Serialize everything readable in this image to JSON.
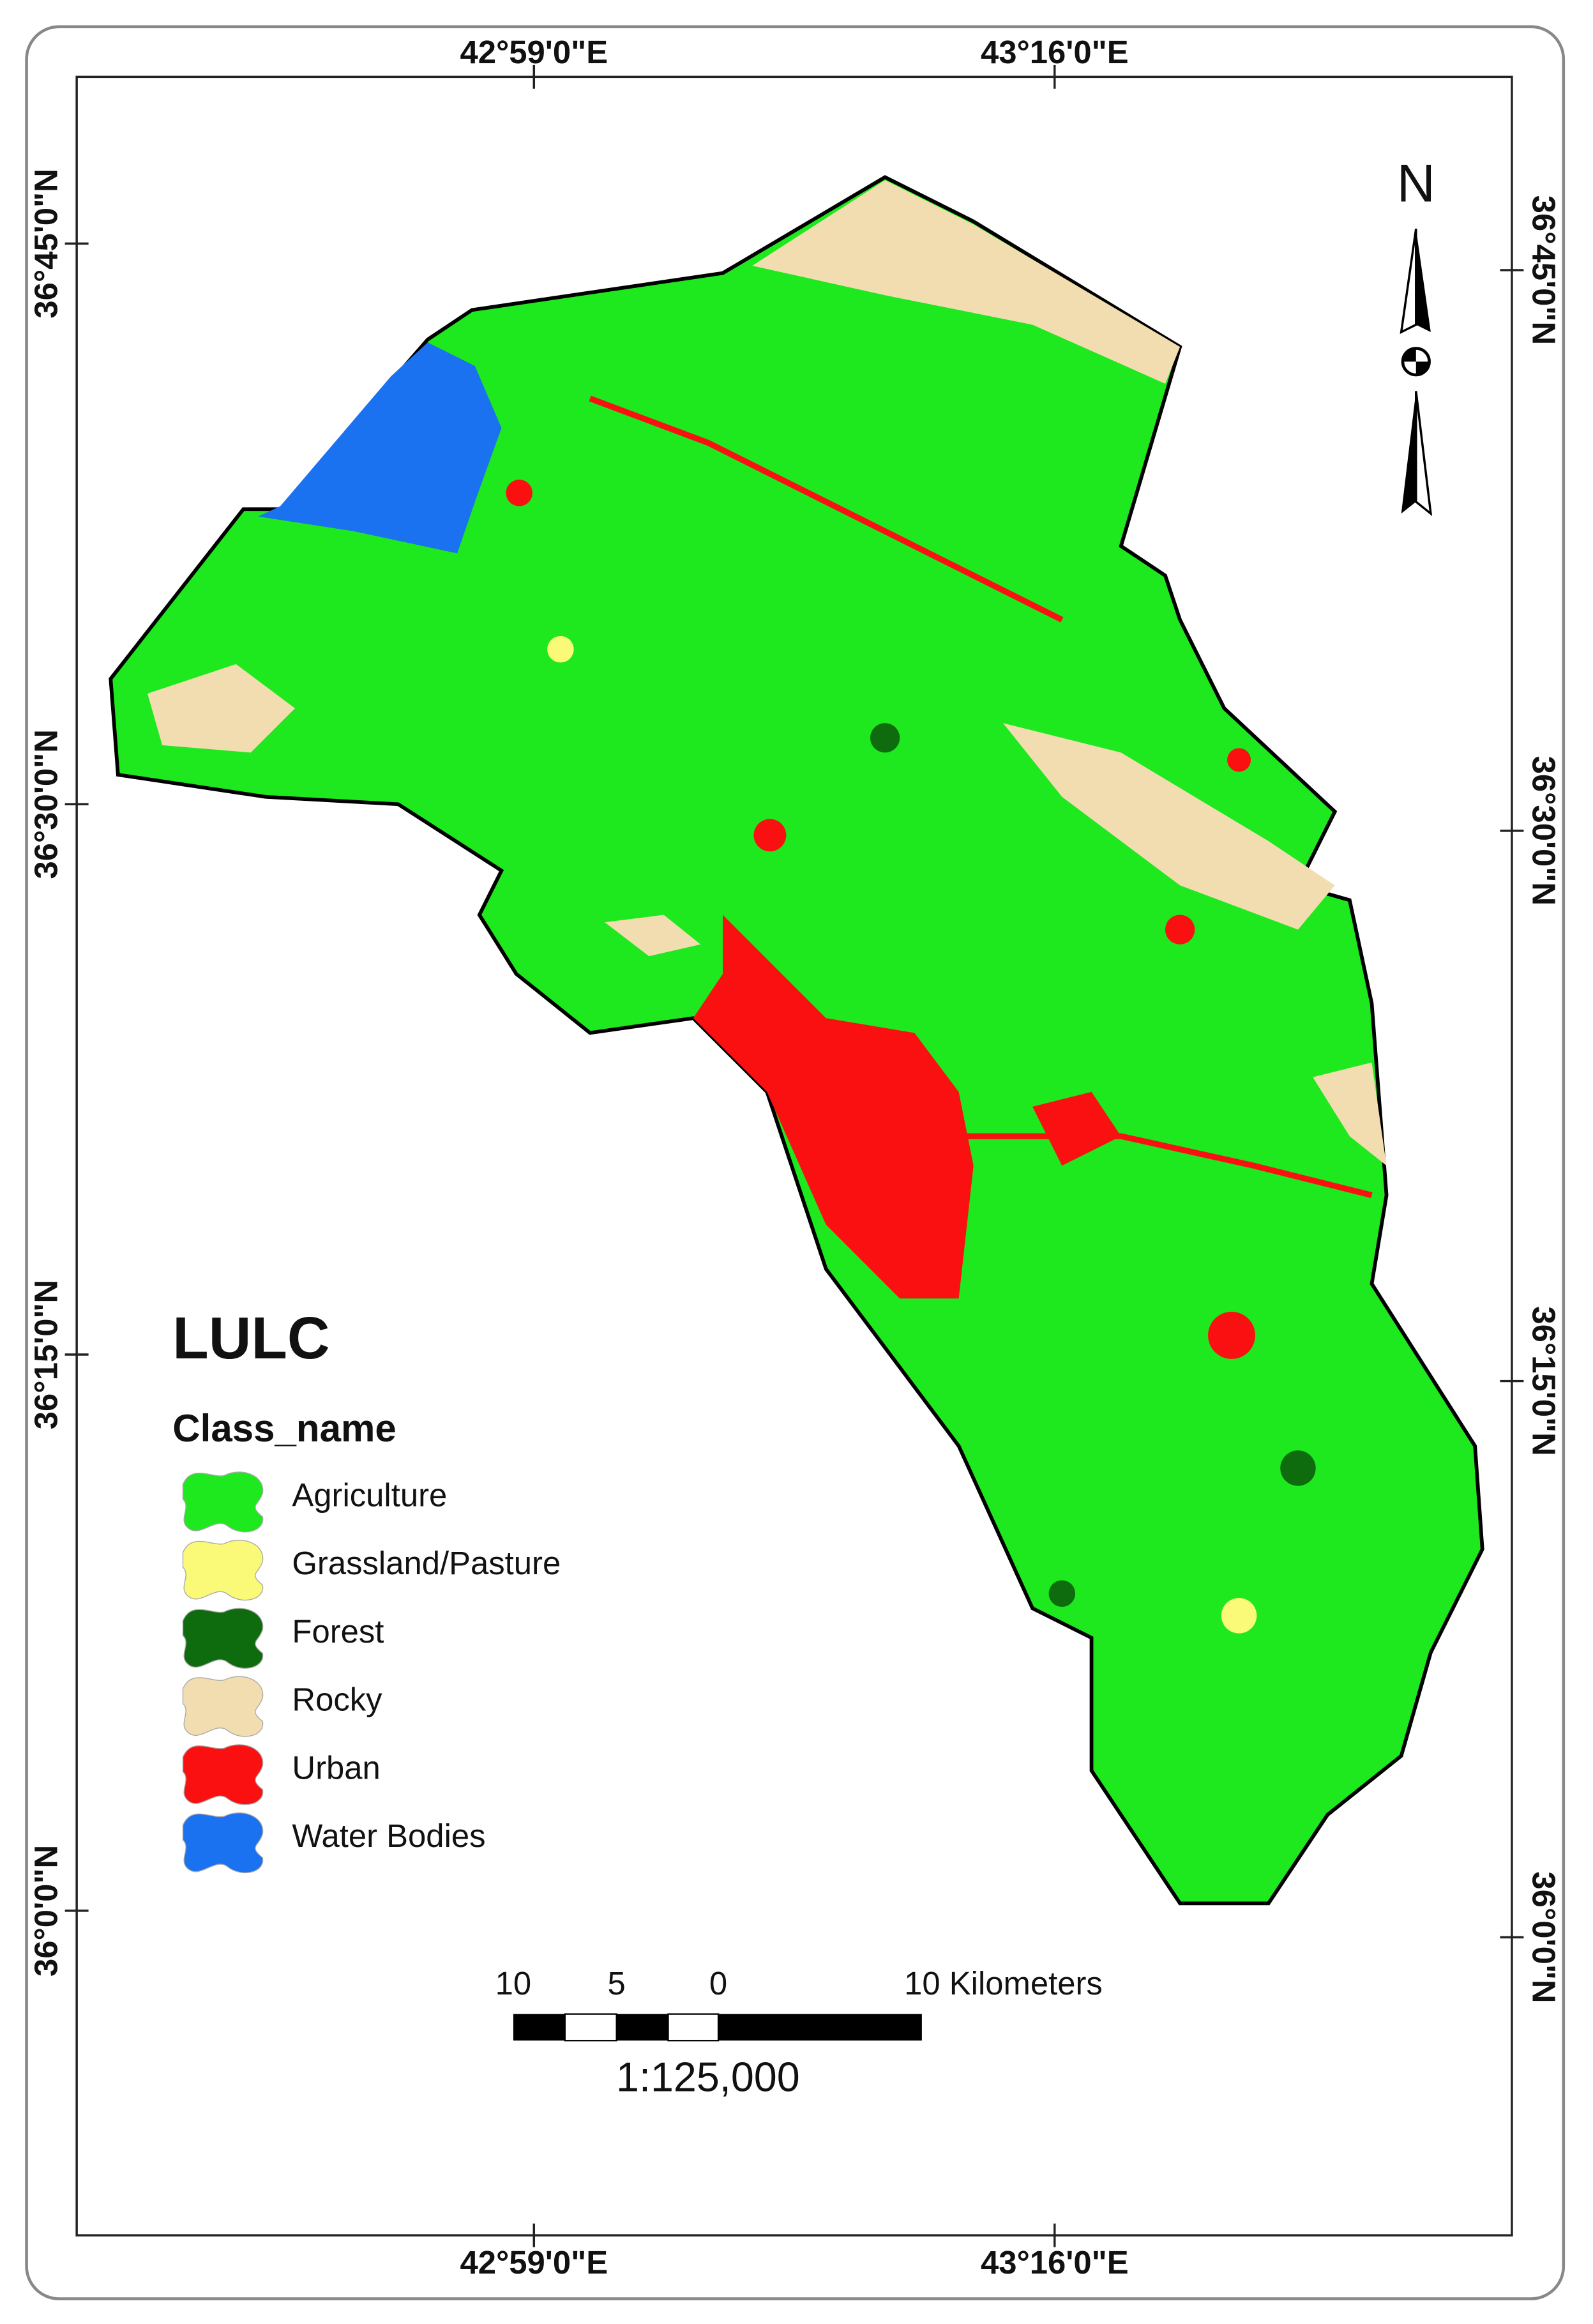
{
  "map": {
    "top_labels": [
      "42°59'0\"E",
      "43°16'0\"E"
    ],
    "bottom_labels": [
      "42°59'0\"E",
      "43°16'0\"E"
    ],
    "left_labels": [
      "36°45'0\"N",
      "36°30'0\"N",
      "36°15'0\"N",
      "36°0'0\"N"
    ],
    "right_labels": [
      "36°45'0\"N",
      "36°30'0\"N",
      "36°15'0\"N",
      "36°0'0\"N"
    ],
    "north": "N",
    "legend": {
      "title": "LULC",
      "subtitle": "Class_name",
      "items": [
        {
          "name": "Agriculture",
          "color": "#1ee81e"
        },
        {
          "name": "Grassland/Pasture",
          "color": "#fafa78"
        },
        {
          "name": "Forest",
          "color": "#0e6b0e"
        },
        {
          "name": "Rocky",
          "color": "#f2ddb0"
        },
        {
          "name": "Urban",
          "color": "#fa1010"
        },
        {
          "name": "Water Bodies",
          "color": "#1a72f0"
        }
      ]
    },
    "scale_bar": {
      "labels": [
        "10",
        "5",
        "0",
        "10 Kilometers"
      ],
      "ratio": "1:125,000"
    }
  }
}
